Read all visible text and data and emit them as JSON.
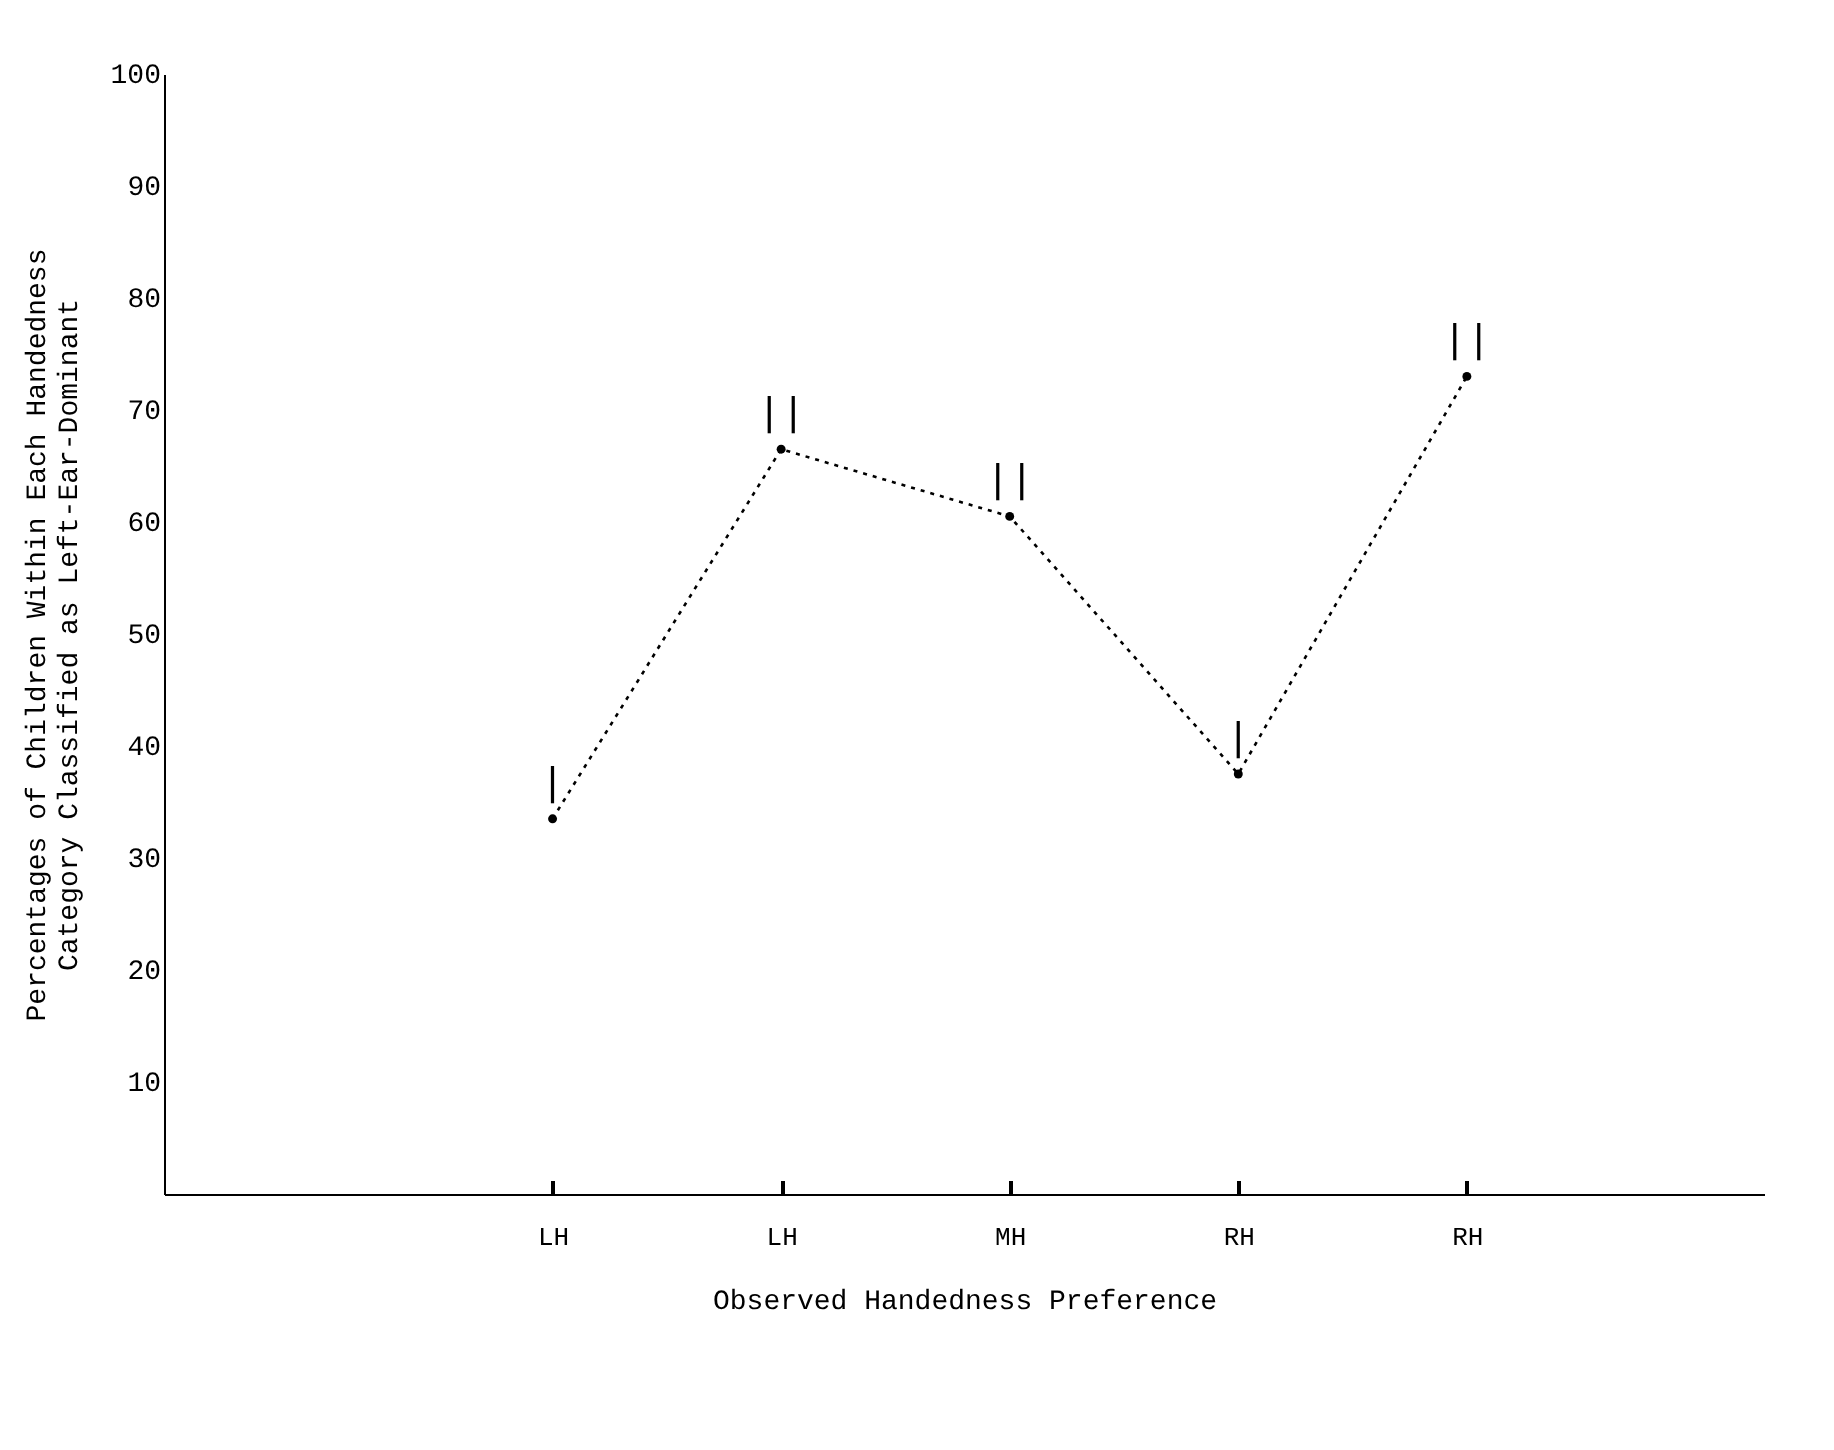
{
  "chart_data": {
    "type": "line",
    "xlabel": "Observed Handedness Preference",
    "ylabel": "Percentages of Children Within Each Handedness Category Classified as Left-Ear-Dominant",
    "categories": [
      "LH",
      "LH",
      "MH",
      "RH",
      "RH"
    ],
    "series": [
      {
        "color": "#000000",
        "values": [
          33.5,
          66.5,
          60.5,
          37.5,
          73
        ]
      }
    ],
    "ylim": [
      0,
      100
    ],
    "yticks": [
      10,
      20,
      30,
      40,
      50,
      60,
      70,
      80,
      90,
      100
    ],
    "grid": false,
    "marker": "circle",
    "line_style": "dotted",
    "annotations": [
      "|",
      "||",
      "||",
      "|",
      "||"
    ]
  }
}
